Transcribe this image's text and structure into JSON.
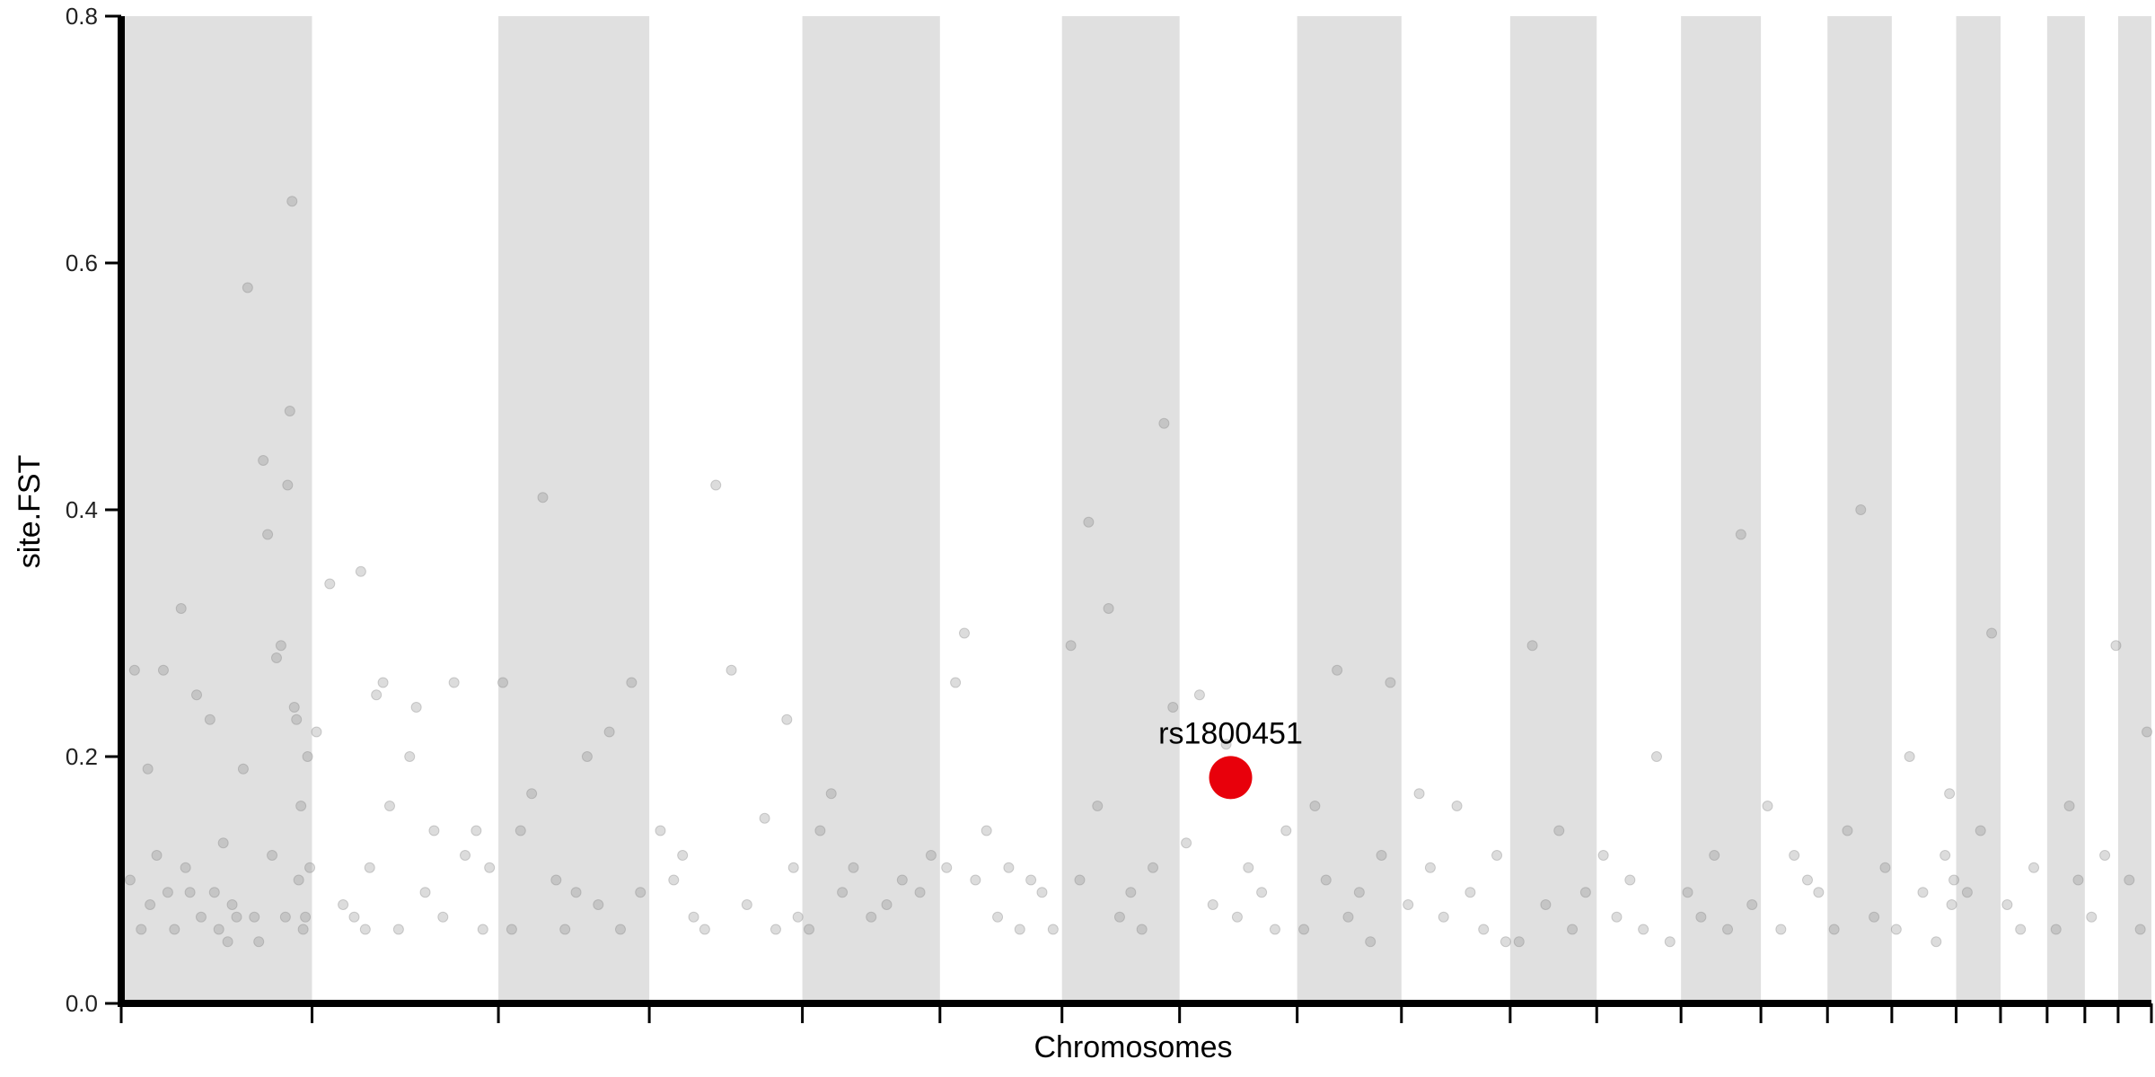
{
  "chart_data": {
    "type": "scatter",
    "title": "",
    "xlabel": "Chromosomes",
    "ylabel": "site.FST",
    "ylim": [
      0,
      0.8
    ],
    "yticks": [
      "0.0",
      "0.2",
      "0.4",
      "0.6",
      "0.8"
    ],
    "grid": false,
    "legend": "none",
    "chromosome_bands": "alternating grey / white",
    "chromosome_boundaries_x": [
      0,
      0.086,
      0.17,
      0.238,
      0.307,
      0.369,
      0.424,
      0.477,
      0.53,
      0.577,
      0.626,
      0.665,
      0.703,
      0.739,
      0.769,
      0.798,
      0.827,
      0.847,
      0.868,
      0.885,
      0.9,
      0.915
    ],
    "colors": {
      "band": "#e0e0e0",
      "point": "#808080",
      "highlight": "#e8000b",
      "axis": "#000000"
    },
    "series": [
      {
        "x": [
          0.004,
          0.006,
          0.009,
          0.012,
          0.013,
          0.016,
          0.019,
          0.021,
          0.024,
          0.027,
          0.029,
          0.031,
          0.034,
          0.036,
          0.04,
          0.042,
          0.044,
          0.046,
          0.048,
          0.05,
          0.052,
          0.055,
          0.057,
          0.06,
          0.062,
          0.064,
          0.066,
          0.068,
          0.07,
          0.072,
          0.074,
          0.075,
          0.076,
          0.077,
          0.078,
          0.079,
          0.08,
          0.081,
          0.082,
          0.083,
          0.084,
          0.085,
          0.088,
          0.094,
          0.1,
          0.105,
          0.108,
          0.11,
          0.112,
          0.115,
          0.118,
          0.121,
          0.125,
          0.13,
          0.133,
          0.137,
          0.141,
          0.145,
          0.15,
          0.155,
          0.16,
          0.163,
          0.166,
          0.172,
          0.176,
          0.18,
          0.185,
          0.19,
          0.196,
          0.2,
          0.205,
          0.21,
          0.215,
          0.22,
          0.225,
          0.23,
          0.234,
          0.243,
          0.249,
          0.253,
          0.258,
          0.263,
          0.268,
          0.275,
          0.282,
          0.29,
          0.295,
          0.3,
          0.303,
          0.305,
          0.31,
          0.315,
          0.32,
          0.325,
          0.33,
          0.338,
          0.345,
          0.352,
          0.36,
          0.365,
          0.372,
          0.376,
          0.38,
          0.385,
          0.39,
          0.395,
          0.4,
          0.405,
          0.41,
          0.415,
          0.42,
          0.428,
          0.432,
          0.436,
          0.44,
          0.445,
          0.45,
          0.455,
          0.46,
          0.465,
          0.47,
          0.474,
          0.48,
          0.486,
          0.492,
          0.498,
          0.503,
          0.508,
          0.514,
          0.52,
          0.525,
          0.533,
          0.538,
          0.543,
          0.548,
          0.553,
          0.558,
          0.563,
          0.568,
          0.572,
          0.58,
          0.585,
          0.59,
          0.596,
          0.602,
          0.608,
          0.614,
          0.62,
          0.624,
          0.63,
          0.636,
          0.642,
          0.648,
          0.654,
          0.66,
          0.668,
          0.674,
          0.68,
          0.686,
          0.692,
          0.698,
          0.706,
          0.712,
          0.718,
          0.724,
          0.73,
          0.735,
          0.742,
          0.748,
          0.754,
          0.76,
          0.765,
          0.772,
          0.778,
          0.784,
          0.79,
          0.795,
          0.8,
          0.806,
          0.812,
          0.818,
          0.822,
          0.824,
          0.825,
          0.826,
          0.832,
          0.838,
          0.843,
          0.85,
          0.856,
          0.862,
          0.872,
          0.878,
          0.882,
          0.888,
          0.894,
          0.899,
          0.905,
          0.91,
          0.913
        ],
        "y": [
          0.1,
          0.27,
          0.06,
          0.19,
          0.08,
          0.12,
          0.27,
          0.09,
          0.06,
          0.32,
          0.11,
          0.09,
          0.25,
          0.07,
          0.23,
          0.09,
          0.06,
          0.13,
          0.05,
          0.08,
          0.07,
          0.19,
          0.58,
          0.07,
          0.05,
          0.44,
          0.38,
          0.12,
          0.28,
          0.29,
          0.07,
          0.42,
          0.48,
          0.65,
          0.24,
          0.23,
          0.1,
          0.16,
          0.06,
          0.07,
          0.2,
          0.11,
          0.22,
          0.34,
          0.08,
          0.07,
          0.35,
          0.06,
          0.11,
          0.25,
          0.26,
          0.16,
          0.06,
          0.2,
          0.24,
          0.09,
          0.14,
          0.07,
          0.26,
          0.12,
          0.14,
          0.06,
          0.11,
          0.26,
          0.06,
          0.14,
          0.17,
          0.41,
          0.1,
          0.06,
          0.09,
          0.2,
          0.08,
          0.22,
          0.06,
          0.26,
          0.09,
          0.14,
          0.1,
          0.12,
          0.07,
          0.06,
          0.42,
          0.27,
          0.08,
          0.15,
          0.06,
          0.23,
          0.11,
          0.07,
          0.06,
          0.14,
          0.17,
          0.09,
          0.11,
          0.07,
          0.08,
          0.1,
          0.09,
          0.12,
          0.11,
          0.26,
          0.3,
          0.1,
          0.14,
          0.07,
          0.11,
          0.06,
          0.1,
          0.09,
          0.06,
          0.29,
          0.1,
          0.39,
          0.16,
          0.32,
          0.07,
          0.09,
          0.06,
          0.11,
          0.47,
          0.24,
          0.13,
          0.25,
          0.08,
          0.21,
          0.07,
          0.11,
          0.09,
          0.06,
          0.14,
          0.06,
          0.16,
          0.1,
          0.27,
          0.07,
          0.09,
          0.05,
          0.12,
          0.26,
          0.08,
          0.17,
          0.11,
          0.07,
          0.16,
          0.09,
          0.06,
          0.12,
          0.05,
          0.05,
          0.29,
          0.08,
          0.14,
          0.06,
          0.09,
          0.12,
          0.07,
          0.1,
          0.06,
          0.2,
          0.05,
          0.09,
          0.07,
          0.12,
          0.06,
          0.38,
          0.08,
          0.16,
          0.06,
          0.12,
          0.1,
          0.09,
          0.06,
          0.14,
          0.4,
          0.07,
          0.11,
          0.06,
          0.2,
          0.09,
          0.05,
          0.12,
          0.17,
          0.08,
          0.1,
          0.09,
          0.14,
          0.3,
          0.08,
          0.06,
          0.11,
          0.06,
          0.16,
          0.1,
          0.07,
          0.12,
          0.29,
          0.1,
          0.06,
          0.22
        ]
      },
      {
        "x": [
          0.5
        ],
        "y": [
          0.183
        ],
        "highlight": true,
        "label": "rs1800451"
      }
    ]
  }
}
